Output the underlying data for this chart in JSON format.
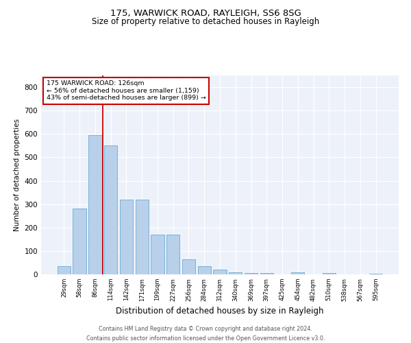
{
  "title1": "175, WARWICK ROAD, RAYLEIGH, SS6 8SG",
  "title2": "Size of property relative to detached houses in Rayleigh",
  "xlabel": "Distribution of detached houses by size in Rayleigh",
  "ylabel": "Number of detached properties",
  "categories": [
    "29sqm",
    "58sqm",
    "86sqm",
    "114sqm",
    "142sqm",
    "171sqm",
    "199sqm",
    "227sqm",
    "256sqm",
    "284sqm",
    "312sqm",
    "340sqm",
    "369sqm",
    "397sqm",
    "425sqm",
    "454sqm",
    "482sqm",
    "510sqm",
    "538sqm",
    "567sqm",
    "595sqm"
  ],
  "values": [
    35,
    280,
    595,
    550,
    320,
    320,
    170,
    170,
    65,
    35,
    20,
    10,
    7,
    5,
    0,
    10,
    0,
    5,
    0,
    0,
    2
  ],
  "bar_color": "#b8d0ea",
  "bar_edge_color": "#6aaad4",
  "annotation_text": "175 WARWICK ROAD: 126sqm\n← 56% of detached houses are smaller (1,159)\n43% of semi-detached houses are larger (899) →",
  "annotation_box_color": "#ffffff",
  "annotation_box_edge_color": "#cc0000",
  "vline_color": "#cc0000",
  "vline_x": 3.0,
  "ylim": [
    0,
    850
  ],
  "yticks": [
    0,
    100,
    200,
    300,
    400,
    500,
    600,
    700,
    800
  ],
  "background_color": "#edf2fa",
  "footer_line1": "Contains HM Land Registry data © Crown copyright and database right 2024.",
  "footer_line2": "Contains public sector information licensed under the Open Government Licence v3.0."
}
